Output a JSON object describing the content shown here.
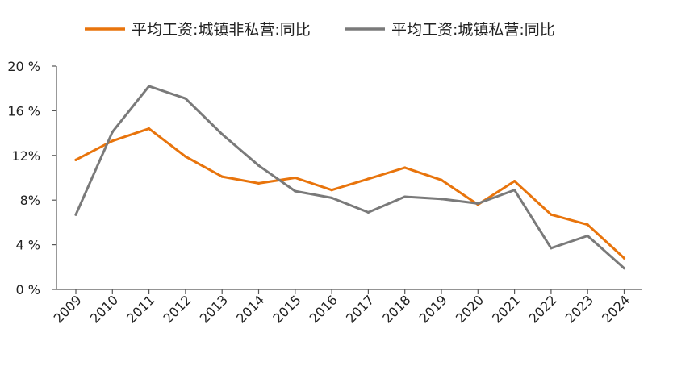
{
  "chart_data": {
    "type": "line",
    "x": [
      "2009",
      "2010",
      "2011",
      "2012",
      "2013",
      "2014",
      "2015",
      "2016",
      "2017",
      "2018",
      "2019",
      "2020",
      "2021",
      "2022",
      "2023",
      "2024"
    ],
    "series": [
      {
        "name": "平均工资:城镇非私营:同比",
        "color": "#E8740C",
        "values": [
          11.6,
          13.3,
          14.4,
          11.9,
          10.1,
          9.5,
          10.0,
          8.9,
          9.9,
          10.9,
          9.8,
          7.6,
          9.7,
          6.7,
          5.8,
          2.8
        ]
      },
      {
        "name": "平均工资:城镇私营:同比",
        "color": "#7A7A7A",
        "values": [
          6.7,
          14.1,
          18.2,
          17.1,
          13.9,
          11.1,
          8.8,
          8.2,
          6.9,
          8.3,
          8.1,
          7.7,
          8.9,
          3.7,
          4.8,
          1.9
        ]
      }
    ],
    "y_ticks": [
      "0 %",
      "4 %",
      "8%",
      "12%",
      "16 %",
      "20 %"
    ],
    "ylim": [
      0,
      20
    ],
    "grid": false,
    "legend_position": "top"
  }
}
